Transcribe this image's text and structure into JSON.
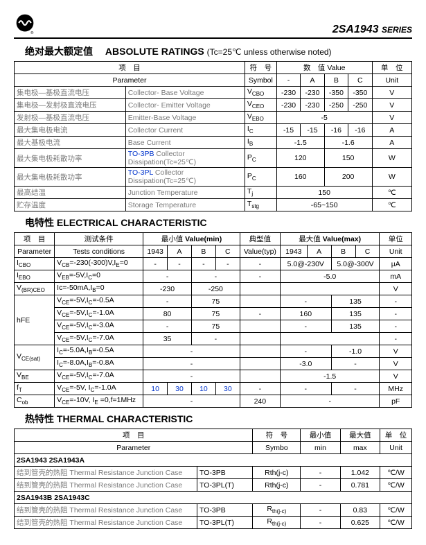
{
  "header": {
    "series": "2SA1943",
    "series_suffix": "SERIES"
  },
  "absolute": {
    "title_cn": "绝对最大额定值",
    "title_en": "ABSOLUTE RATINGS",
    "note": "(Tc=25℃ unless otherwise noted)",
    "head": {
      "param_cn": "项　目",
      "param_en": "Parameter",
      "sym_cn": "符　号",
      "sym_en": "Symbol",
      "val_cn": "数　值",
      "val_en": "Value",
      "unit_cn": "单　位",
      "unit_en": "Unit",
      "dash": "-",
      "A": "A",
      "B": "B",
      "C": "C"
    },
    "rows": [
      {
        "cn": "集电极—基极直流电压",
        "en": "Collector- Base Voltage",
        "sym": "V",
        "sub": "CBO",
        "vals": [
          "-230",
          "-230",
          "-350",
          "-350"
        ],
        "unit": "V"
      },
      {
        "cn": "集电极—发射极直流电压",
        "en": "Collector- Emitter Voltage",
        "sym": "V",
        "sub": "CEO",
        "vals": [
          "-230",
          "-230",
          "-250",
          "-250"
        ],
        "unit": "V"
      },
      {
        "cn": "发射极—基极直流电压",
        "en": "Emitter-Base Voltage",
        "sym": "V",
        "sub": "EBO",
        "vals": [
          "",
          "-5",
          "",
          ""
        ],
        "unit": "V",
        "span": 4
      },
      {
        "cn": "最大集电极电流",
        "en": "Collector Current",
        "sym": "I",
        "sub": "C",
        "vals": [
          "-15",
          "-15",
          "-16",
          "-16"
        ],
        "unit": "A"
      },
      {
        "cn": "最大基极电流",
        "en": "Base Current",
        "sym": "I",
        "sub": "B",
        "vals": [
          "-1.5",
          "",
          "-1.6",
          ""
        ],
        "unit": "A",
        "pair": true
      },
      {
        "cn": "最大集电极耗散功率",
        "en_pre": "TO-3PB",
        "en": " Collector Dissipation(Tc=25℃)",
        "sym": "P",
        "sub": "C",
        "vals": [
          "120",
          "",
          "150",
          ""
        ],
        "unit": "W",
        "pair": true,
        "blue": true
      },
      {
        "cn": "最大集电极耗散功率",
        "en_pre": "TO-3PL",
        "en": " Collector Dissipation(Tc=25℃)",
        "sym": "P",
        "sub": "C",
        "vals": [
          "160",
          "",
          "200",
          ""
        ],
        "unit": "W",
        "pair": true,
        "blue": true
      },
      {
        "cn": "最高结温",
        "en": "Junction Temperature",
        "sym": "T",
        "sub": "j",
        "vals": [
          "",
          "150",
          "",
          ""
        ],
        "unit": "℃",
        "span": 4
      },
      {
        "cn": "贮存温度",
        "en": "Storage Temperature",
        "sym": "T",
        "sub": "stg",
        "vals": [
          "",
          "-65~150",
          "",
          ""
        ],
        "unit": "℃",
        "span": 4
      }
    ]
  },
  "electrical": {
    "title_cn": "电特性",
    "title_en": "ELECTRICAL CHARACTERISTIC",
    "head": {
      "param_cn": "项　目",
      "param_en": "Parameter",
      "cond_cn": "测试条件",
      "cond_en": "Tests conditions",
      "min_cn": "最小值",
      "min_en": "Value(min)",
      "typ_cn": "典型值",
      "typ_en": "Value(typ)",
      "max_cn": "最大值",
      "max_en": "Value(max)",
      "unit_cn": "单位",
      "unit_en": "Unit",
      "n1943": "1943",
      "A": "A",
      "B": "B",
      "C": "C"
    },
    "rows": [
      {
        "p": "I",
        "psub": "CBO",
        "cond": "V<sub>CB</sub>=-230(-300)V,I<sub>E</sub>=0",
        "min": [
          "-",
          "-",
          "-",
          "-"
        ],
        "typ": "-",
        "max": [
          "5.0@-230V",
          "",
          "5.0@-300V",
          ""
        ],
        "pair": true,
        "unit": "µA"
      },
      {
        "p": "I",
        "psub": "EBO",
        "cond": "V<sub>EB</sub>=-5V,I<sub>C</sub>=0",
        "min": [
          "-",
          "",
          "-",
          ""
        ],
        "minpair": true,
        "typ": "-",
        "max": [
          "",
          "-5.0",
          "",
          ""
        ],
        "span": 4,
        "unit": "mA"
      },
      {
        "p": "V",
        "psub": "(BR)CEO",
        "cond": "Ic=-50mA,I<sub>B</sub>=0",
        "min": [
          "-230",
          "",
          "-250",
          ""
        ],
        "minpair": true,
        "typ": "",
        "max": [
          "",
          "",
          "",
          ""
        ],
        "span": 4,
        "unit": "V"
      },
      {
        "p": "hFE",
        "prowspan": 4,
        "cond": "V<sub>CE</sub>=-5V,I<sub>C</sub>=-0.5A",
        "min": [
          "-",
          "",
          "75",
          ""
        ],
        "minpair": true,
        "typ": "",
        "max": [
          "-",
          "",
          "135",
          ""
        ],
        "pair": true,
        "unit": "-",
        "nosub": true
      },
      {
        "cond": "V<sub>CE</sub>=-5V,I<sub>C</sub>=-1.0A",
        "min": [
          "80",
          "",
          "75",
          ""
        ],
        "minpair": true,
        "typ": "-",
        "max": [
          "160",
          "",
          "135",
          ""
        ],
        "pair": true,
        "unit": "-"
      },
      {
        "cond": "V<sub>CE</sub>=-5V,I<sub>C</sub>=-3.0A",
        "min": [
          "-",
          "",
          "75",
          ""
        ],
        "minpair": true,
        "typ": "",
        "max": [
          "-",
          "",
          "135",
          ""
        ],
        "pair": true,
        "unit": "-"
      },
      {
        "cond": "V<sub>CE</sub>=-5V,I<sub>C</sub>=-7.0A",
        "min": [
          "35",
          "",
          "-",
          ""
        ],
        "minpair": true,
        "typ": "",
        "max": [
          "",
          "",
          "",
          ""
        ],
        "span": 4,
        "unit": "-"
      },
      {
        "p": "V",
        "psub": "CE(sat)",
        "prowspan": 2,
        "cond": "I<sub>C</sub>=-5.0A,I<sub>B</sub>=-0.5A",
        "min": [
          "",
          "",
          "-",
          ""
        ],
        "minspan": 4,
        "typ": "",
        "max": [
          "-",
          "",
          "-1.0",
          ""
        ],
        "pair": true,
        "unit": "V"
      },
      {
        "cond": "I<sub>C</sub>=-8.0A,I<sub>B</sub>=-0.8A",
        "min": [
          "",
          "",
          "-",
          ""
        ],
        "minspan": 4,
        "typ": "",
        "max": [
          "-3.0",
          "",
          "-",
          ""
        ],
        "pair": true,
        "unit": "V"
      },
      {
        "p": "V",
        "psub": "BE",
        "cond": "V<sub>CE</sub>=-5V,I<sub>C</sub>=-7.0A",
        "min": [
          "",
          "",
          "-",
          ""
        ],
        "minspan": 4,
        "typ": "",
        "max": [
          "",
          "-1.5",
          "",
          ""
        ],
        "span": 4,
        "unit": "V"
      },
      {
        "p": "f",
        "psub": "T",
        "cond": "V<sub>CE</sub>=-5V, I<sub>C</sub>=-1.0A",
        "min": [
          "10",
          "30",
          "10",
          "30"
        ],
        "blue": true,
        "typ": "-",
        "max": [
          "-",
          "",
          "-",
          ""
        ],
        "pair": true,
        "unit": "MHz"
      },
      {
        "p": "C",
        "psub": "ob",
        "cond": "V<sub>CE</sub>=-10V, I<sub>E</sub> =0,f=1MHz",
        "min": [
          "",
          "",
          "-",
          ""
        ],
        "minspan": 4,
        "typ": "240",
        "max": [
          "",
          "",
          "-",
          ""
        ],
        "span": 4,
        "unit": "pF"
      }
    ]
  },
  "thermal": {
    "title_cn": "热特性",
    "title_en": "THERMAL CHARACTERISTIC",
    "head": {
      "param_cn": "项　目",
      "param_en": "Parameter",
      "sym_cn": "符　号",
      "sym_en": "Symbo",
      "min_cn": "最小值",
      "min_en": "min",
      "max_cn": "最大值",
      "max_en": "max",
      "unit_cn": "单　位",
      "unit_en": "Unit"
    },
    "group1": "2SA1943   2SA1943A",
    "rows1": [
      {
        "p_cn": "结到管壳的热阻",
        "p_en": "Thermal Resistance Junction Case",
        "pkg": "TO-3PB",
        "sym": "Rth(j-c)",
        "min": "-",
        "max": "1.042",
        "unit": "℃/W"
      },
      {
        "p_cn": "结到管壳的热阻",
        "p_en": "Thermal Resistance Junction Case",
        "pkg": "TO-3PL(T)",
        "sym": "Rth(j-c)",
        "min": "-",
        "max": "0.781",
        "unit": "℃/W"
      }
    ],
    "group2": "2SA1943B   2SA1943C",
    "rows2": [
      {
        "p_cn": "结到管壳的热阻",
        "p_en": "Thermal Resistance Junction Case",
        "pkg": "TO-3PB",
        "sym": "R",
        "sub": "th(j-c)",
        "min": "-",
        "max": "0.83",
        "unit": "℃/W"
      },
      {
        "p_cn": "结到管壳的热阻",
        "p_en": "Thermal Resistance Junction Case",
        "pkg": "TO-3PL(T)",
        "sym": "R",
        "sub": "th(j-c)",
        "min": "-",
        "max": "0.625",
        "unit": "℃/W"
      }
    ]
  }
}
